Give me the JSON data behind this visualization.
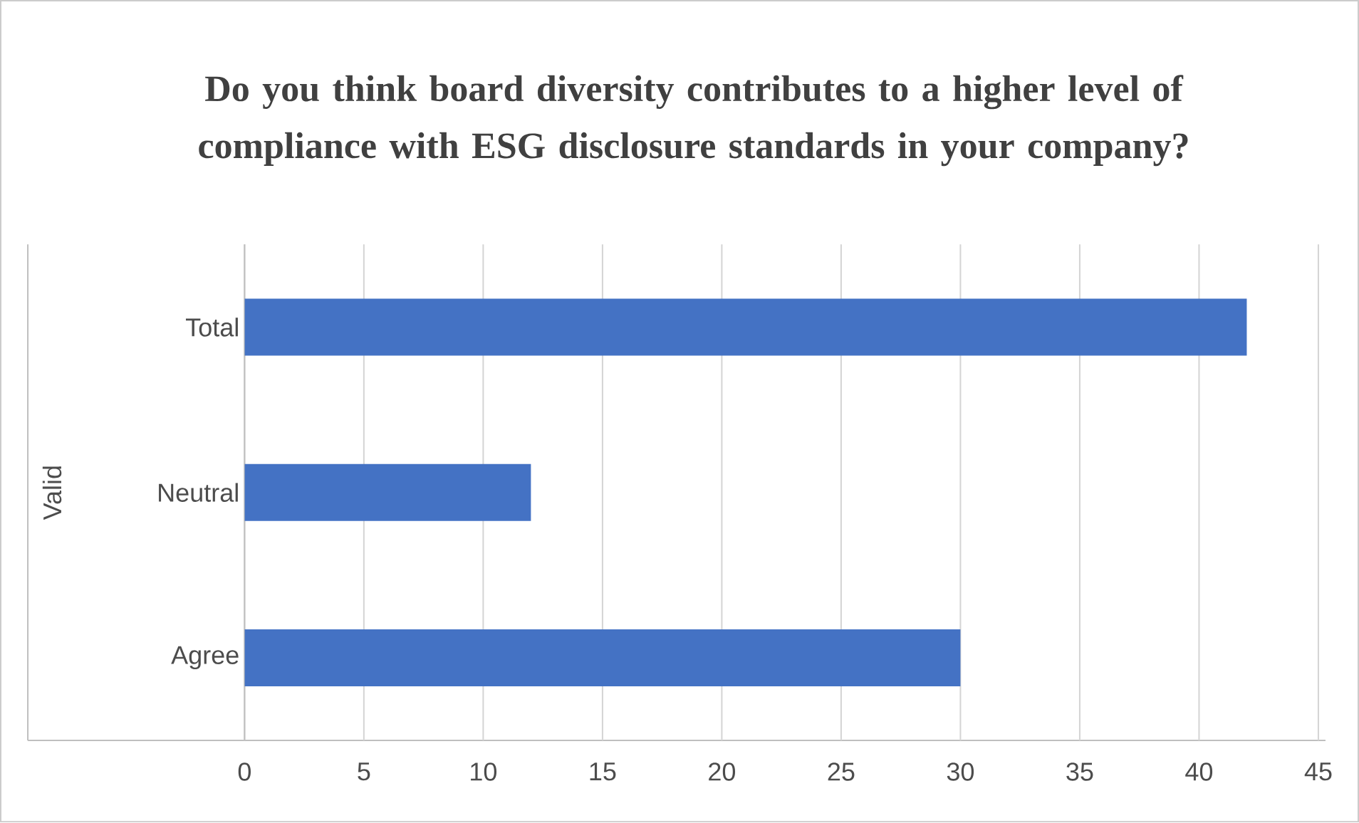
{
  "chart_data": {
    "type": "bar",
    "orientation": "horizontal",
    "title": "Do you think board diversity contributes to a higher level of compliance with ESG disclosure standards in your company?",
    "ylabel": "Valid",
    "categories": [
      "Total",
      "Neutral",
      "Agree"
    ],
    "values": [
      42,
      12,
      30
    ],
    "color": "#4472c4",
    "xlim": [
      0,
      45
    ],
    "xticks": [
      0,
      5,
      10,
      15,
      20,
      25,
      30,
      35,
      40,
      45
    ],
    "grid": "x"
  }
}
